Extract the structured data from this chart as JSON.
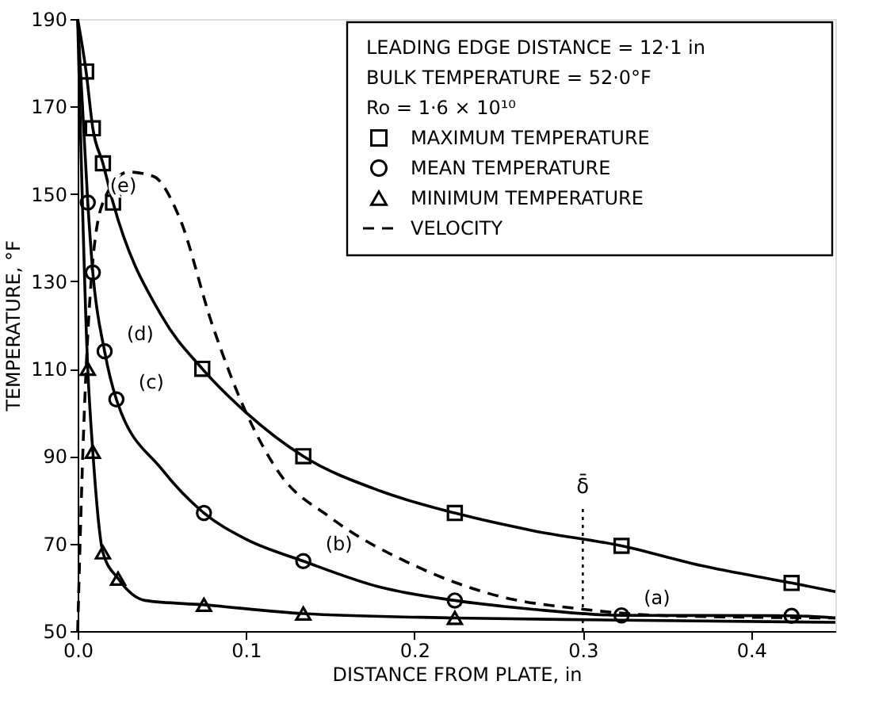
{
  "chart_data": {
    "type": "line",
    "xlabel": "DISTANCE FROM PLATE,  in",
    "ylabel": "TEMPERATURE,  °F",
    "xlim": [
      0,
      0.45
    ],
    "ylim": [
      50,
      190
    ],
    "xticks": [
      {
        "value": 0,
        "label": "0.0"
      },
      0.1,
      0.2,
      0.3,
      0.4
    ],
    "yticks": [
      50,
      70,
      90,
      110,
      130,
      150,
      170,
      190
    ],
    "grid": false,
    "legend": "top right",
    "series": [
      {
        "type": "scatter",
        "name": "MAXIMUM TEMPERATURE",
        "marker": "square",
        "color": "#000000",
        "x": [
          0.005,
          0.009,
          0.015,
          0.021,
          0.074,
          0.134,
          0.224,
          0.323,
          0.424
        ],
        "values": [
          178,
          165,
          157,
          148,
          110,
          90,
          77,
          69.5,
          61
        ]
      },
      {
        "type": "scatter",
        "name": "MEAN TEMPERATURE",
        "marker": "circle",
        "color": "#000000",
        "x": [
          0.006,
          0.009,
          0.016,
          0.023,
          0.075,
          0.134,
          0.224,
          0.323,
          0.424
        ],
        "values": [
          148,
          132,
          114,
          103,
          77,
          66,
          57,
          53.6,
          53.5
        ]
      },
      {
        "type": "scatter",
        "name": "MINIMUM TEMPERATURE",
        "marker": "triangle",
        "color": "#000000",
        "x": [
          0.006,
          0.009,
          0.015,
          0.024,
          0.075,
          0.134,
          0.224
        ],
        "values": [
          110,
          91,
          68,
          62,
          56,
          54,
          53
        ]
      },
      {
        "name": "VELOCITY",
        "line_style": "dashed",
        "color": "#000000",
        "x": [
          0,
          0.003,
          0.008,
          0.015,
          0.03,
          0.045,
          0.06,
          0.08,
          0.1,
          0.12,
          0.15,
          0.2,
          0.25,
          0.3,
          0.35,
          0.45
        ],
        "values": [
          50,
          90,
          130,
          148,
          155,
          154,
          145,
          120,
          100,
          86,
          76,
          65,
          58,
          55,
          53.5,
          53
        ]
      },
      {
        "line_style": "solid",
        "color": "#000000",
        "x": [
          0,
          0.005,
          0.009,
          0.015,
          0.021,
          0.05,
          0.074,
          0.1,
          0.134,
          0.18,
          0.224,
          0.27,
          0.323,
          0.37,
          0.424,
          0.45
        ],
        "values": [
          190,
          178,
          165,
          157,
          148,
          122,
          110,
          100,
          90,
          82,
          77,
          73,
          69.5,
          65,
          61,
          59
        ]
      },
      {
        "line_style": "solid",
        "color": "#000000",
        "x": [
          0,
          0.006,
          0.009,
          0.016,
          0.023,
          0.05,
          0.075,
          0.1,
          0.134,
          0.18,
          0.224,
          0.27,
          0.323,
          0.424,
          0.45
        ],
        "values": [
          190,
          148,
          132,
          114,
          103,
          87,
          77,
          71,
          66,
          60,
          57,
          55,
          53.6,
          53.5,
          53
        ]
      },
      {
        "line_style": "solid",
        "color": "#000000",
        "x": [
          0,
          0.006,
          0.009,
          0.015,
          0.024,
          0.04,
          0.075,
          0.134,
          0.224,
          0.323,
          0.45
        ],
        "values": [
          190,
          110,
          91,
          68,
          62,
          57,
          56,
          54,
          53,
          52.5,
          52
        ]
      }
    ],
    "ref_lines": [
      {
        "axis": "x",
        "value": 0.3,
        "label": "δ̄",
        "line_style": "dotted",
        "color": "#000000"
      }
    ],
    "annotations": [
      "LEADING EDGE DISTANCE = 12·1 in",
      "BULK TEMPERATURE = 52·0°F",
      "Ro = 1·6 × 10¹⁰",
      {
        "text": "(e)",
        "x": 0.006,
        "y": 148
      },
      {
        "text": "(d)",
        "x": 0.016,
        "y": 114
      },
      {
        "text": "(c)",
        "x": 0.023,
        "y": 103
      },
      {
        "text": "(b)",
        "x": 0.134,
        "y": 66
      },
      {
        "text": "(a)",
        "x": 0.323,
        "y": 53.6
      }
    ]
  }
}
